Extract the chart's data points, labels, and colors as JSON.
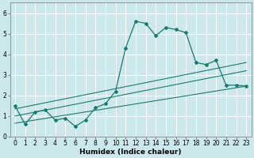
{
  "title": "",
  "xlabel": "Humidex (Indice chaleur)",
  "bg_color": "#cce8ec",
  "grid_color": "#ffffff",
  "line_color": "#1a7a6e",
  "xlim": [
    -0.5,
    23.5
  ],
  "ylim": [
    0,
    6.5
  ],
  "x_ticks": [
    0,
    1,
    2,
    3,
    4,
    5,
    6,
    7,
    8,
    9,
    10,
    11,
    12,
    13,
    14,
    15,
    16,
    17,
    18,
    19,
    20,
    21,
    22,
    23
  ],
  "y_ticks": [
    0,
    1,
    2,
    3,
    4,
    5,
    6
  ],
  "data_x": [
    0,
    1,
    2,
    3,
    4,
    5,
    6,
    7,
    8,
    9,
    10,
    11,
    12,
    13,
    14,
    15,
    16,
    17,
    18,
    19,
    20,
    21,
    22,
    23
  ],
  "data_y": [
    1.5,
    0.6,
    1.2,
    1.3,
    0.8,
    0.9,
    0.5,
    0.8,
    1.4,
    1.6,
    2.2,
    4.3,
    5.6,
    5.5,
    4.9,
    5.3,
    5.2,
    5.05,
    3.6,
    3.5,
    3.7,
    2.5,
    2.5,
    2.45
  ],
  "reg_lines": [
    {
      "x0": 0,
      "y0": 0.65,
      "x1": 23,
      "y1": 2.45
    },
    {
      "x0": 0,
      "y0": 1.0,
      "x1": 23,
      "y1": 3.2
    },
    {
      "x0": 0,
      "y0": 1.35,
      "x1": 23,
      "y1": 3.6
    }
  ]
}
